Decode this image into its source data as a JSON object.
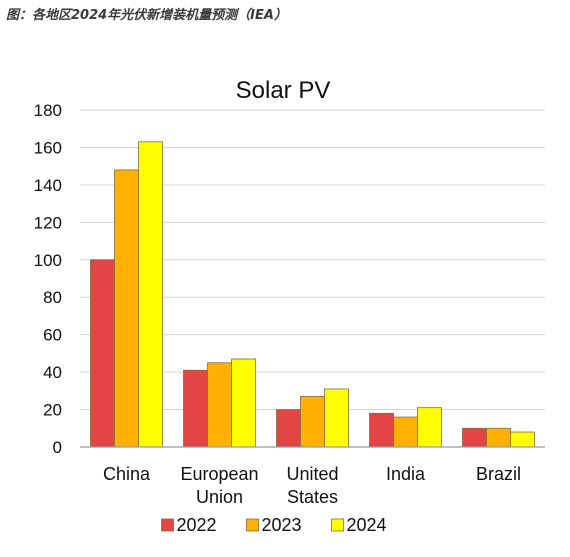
{
  "caption": "图：各地区2024年光伏新增装机量预测（IEA）",
  "chart_data": {
    "type": "bar",
    "title": "Solar PV",
    "categories": [
      [
        "China"
      ],
      [
        "European",
        "Union"
      ],
      [
        "United",
        "States"
      ],
      [
        "India"
      ],
      [
        "Brazil"
      ]
    ],
    "series": [
      {
        "name": "2022",
        "color": "#e34444",
        "values": [
          100,
          41,
          20,
          18,
          10
        ]
      },
      {
        "name": "2023",
        "color": "#ffb000",
        "values": [
          148,
          45,
          27,
          16,
          10
        ]
      },
      {
        "name": "2024",
        "color": "#ffff00",
        "values": [
          163,
          47,
          31,
          21,
          8
        ]
      }
    ],
    "ylim": [
      0,
      180
    ],
    "yticks": [
      0,
      20,
      40,
      60,
      80,
      100,
      120,
      140,
      160,
      180
    ],
    "grid": true,
    "legend_position": "bottom"
  }
}
